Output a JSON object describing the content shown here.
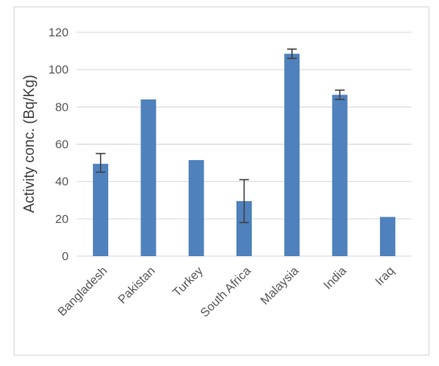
{
  "chart_data": {
    "type": "bar",
    "title": "",
    "xlabel": "",
    "ylabel": "Activity conc. (Bq/Kg)",
    "categories": [
      "Bangladesh",
      "Pakistan",
      "Turkey",
      "South Africa",
      "Malaysia",
      "India",
      "Iraq"
    ],
    "values": [
      49.5,
      84,
      51.5,
      29.5,
      108.5,
      86.5,
      21
    ],
    "error_low": [
      45,
      null,
      null,
      18,
      106,
      84,
      null
    ],
    "error_high": [
      55,
      null,
      null,
      41,
      111,
      89,
      null
    ],
    "ylim": [
      0,
      120
    ],
    "yticks": [
      0,
      20,
      40,
      60,
      80,
      100,
      120
    ],
    "grid": true,
    "legend": "none",
    "bar_color": "#4f81bd",
    "grid_color": "#d9d9d9",
    "error_color": "#404040"
  }
}
